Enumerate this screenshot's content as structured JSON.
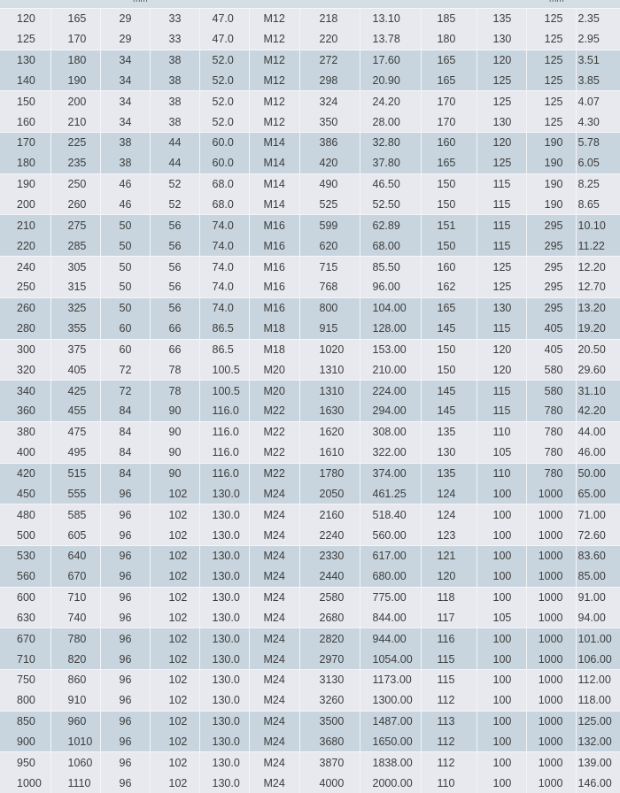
{
  "header": {
    "unit_left": "mm",
    "unit_right": "mm"
  },
  "rows": [
    [
      "120",
      "165",
      "29",
      "33",
      "47.0",
      "M12",
      "218",
      "13.10",
      "185",
      "135",
      "125",
      "2.35"
    ],
    [
      "125",
      "170",
      "29",
      "33",
      "47.0",
      "M12",
      "220",
      "13.78",
      "180",
      "130",
      "125",
      "2.95"
    ],
    [
      "130",
      "180",
      "34",
      "38",
      "52.0",
      "M12",
      "272",
      "17.60",
      "165",
      "120",
      "125",
      "3.51"
    ],
    [
      "140",
      "190",
      "34",
      "38",
      "52.0",
      "M12",
      "298",
      "20.90",
      "165",
      "125",
      "125",
      "3.85"
    ],
    [
      "150",
      "200",
      "34",
      "38",
      "52.0",
      "M12",
      "324",
      "24.20",
      "170",
      "125",
      "125",
      "4.07"
    ],
    [
      "160",
      "210",
      "34",
      "38",
      "52.0",
      "M12",
      "350",
      "28.00",
      "170",
      "130",
      "125",
      "4.30"
    ],
    [
      "170",
      "225",
      "38",
      "44",
      "60.0",
      "M14",
      "386",
      "32.80",
      "160",
      "120",
      "190",
      "5.78"
    ],
    [
      "180",
      "235",
      "38",
      "44",
      "60.0",
      "M14",
      "420",
      "37.80",
      "165",
      "125",
      "190",
      "6.05"
    ],
    [
      "190",
      "250",
      "46",
      "52",
      "68.0",
      "M14",
      "490",
      "46.50",
      "150",
      "115",
      "190",
      "8.25"
    ],
    [
      "200",
      "260",
      "46",
      "52",
      "68.0",
      "M14",
      "525",
      "52.50",
      "150",
      "115",
      "190",
      "8.65"
    ],
    [
      "210",
      "275",
      "50",
      "56",
      "74.0",
      "M16",
      "599",
      "62.89",
      "151",
      "115",
      "295",
      "10.10"
    ],
    [
      "220",
      "285",
      "50",
      "56",
      "74.0",
      "M16",
      "620",
      "68.00",
      "150",
      "115",
      "295",
      "11.22"
    ],
    [
      "240",
      "305",
      "50",
      "56",
      "74.0",
      "M16",
      "715",
      "85.50",
      "160",
      "125",
      "295",
      "12.20"
    ],
    [
      "250",
      "315",
      "50",
      "56",
      "74.0",
      "M16",
      "768",
      "96.00",
      "162",
      "125",
      "295",
      "12.70"
    ],
    [
      "260",
      "325",
      "50",
      "56",
      "74.0",
      "M16",
      "800",
      "104.00",
      "165",
      "130",
      "295",
      "13.20"
    ],
    [
      "280",
      "355",
      "60",
      "66",
      "86.5",
      "M18",
      "915",
      "128.00",
      "145",
      "115",
      "405",
      "19.20"
    ],
    [
      "300",
      "375",
      "60",
      "66",
      "86.5",
      "M18",
      "1020",
      "153.00",
      "150",
      "120",
      "405",
      "20.50"
    ],
    [
      "320",
      "405",
      "72",
      "78",
      "100.5",
      "M20",
      "1310",
      "210.00",
      "150",
      "120",
      "580",
      "29.60"
    ],
    [
      "340",
      "425",
      "72",
      "78",
      "100.5",
      "M20",
      "1310",
      "224.00",
      "145",
      "115",
      "580",
      "31.10"
    ],
    [
      "360",
      "455",
      "84",
      "90",
      "116.0",
      "M22",
      "1630",
      "294.00",
      "145",
      "115",
      "780",
      "42.20"
    ],
    [
      "380",
      "475",
      "84",
      "90",
      "116.0",
      "M22",
      "1620",
      "308.00",
      "135",
      "110",
      "780",
      "44.00"
    ],
    [
      "400",
      "495",
      "84",
      "90",
      "116.0",
      "M22",
      "1610",
      "322.00",
      "130",
      "105",
      "780",
      "46.00"
    ],
    [
      "420",
      "515",
      "84",
      "90",
      "116.0",
      "M22",
      "1780",
      "374.00",
      "135",
      "110",
      "780",
      "50.00"
    ],
    [
      "450",
      "555",
      "96",
      "102",
      "130.0",
      "M24",
      "2050",
      "461.25",
      "124",
      "100",
      "1000",
      "65.00"
    ],
    [
      "480",
      "585",
      "96",
      "102",
      "130.0",
      "M24",
      "2160",
      "518.40",
      "124",
      "100",
      "1000",
      "71.00"
    ],
    [
      "500",
      "605",
      "96",
      "102",
      "130.0",
      "M24",
      "2240",
      "560.00",
      "123",
      "100",
      "1000",
      "72.60"
    ],
    [
      "530",
      "640",
      "96",
      "102",
      "130.0",
      "M24",
      "2330",
      "617.00",
      "121",
      "100",
      "1000",
      "83.60"
    ],
    [
      "560",
      "670",
      "96",
      "102",
      "130.0",
      "M24",
      "2440",
      "680.00",
      "120",
      "100",
      "1000",
      "85.00"
    ],
    [
      "600",
      "710",
      "96",
      "102",
      "130.0",
      "M24",
      "2580",
      "775.00",
      "118",
      "100",
      "1000",
      "91.00"
    ],
    [
      "630",
      "740",
      "96",
      "102",
      "130.0",
      "M24",
      "2680",
      "844.00",
      "117",
      "105",
      "1000",
      "94.00"
    ],
    [
      "670",
      "780",
      "96",
      "102",
      "130.0",
      "M24",
      "2820",
      "944.00",
      "116",
      "100",
      "1000",
      "101.00"
    ],
    [
      "710",
      "820",
      "96",
      "102",
      "130.0",
      "M24",
      "2970",
      "1054.00",
      "115",
      "100",
      "1000",
      "106.00"
    ],
    [
      "750",
      "860",
      "96",
      "102",
      "130.0",
      "M24",
      "3130",
      "1173.00",
      "115",
      "100",
      "1000",
      "112.00"
    ],
    [
      "800",
      "910",
      "96",
      "102",
      "130.0",
      "M24",
      "3260",
      "1300.00",
      "112",
      "100",
      "1000",
      "118.00"
    ],
    [
      "850",
      "960",
      "96",
      "102",
      "130.0",
      "M24",
      "3500",
      "1487.00",
      "113",
      "100",
      "1000",
      "125.00"
    ],
    [
      "900",
      "1010",
      "96",
      "102",
      "130.0",
      "M24",
      "3680",
      "1650.00",
      "112",
      "100",
      "1000",
      "132.00"
    ],
    [
      "950",
      "1060",
      "96",
      "102",
      "130.0",
      "M24",
      "3870",
      "1838.00",
      "112",
      "100",
      "1000",
      "139.00"
    ],
    [
      "1000",
      "1110",
      "96",
      "102",
      "130.0",
      "M24",
      "4000",
      "2000.00",
      "110",
      "100",
      "1000",
      "146.00"
    ]
  ]
}
